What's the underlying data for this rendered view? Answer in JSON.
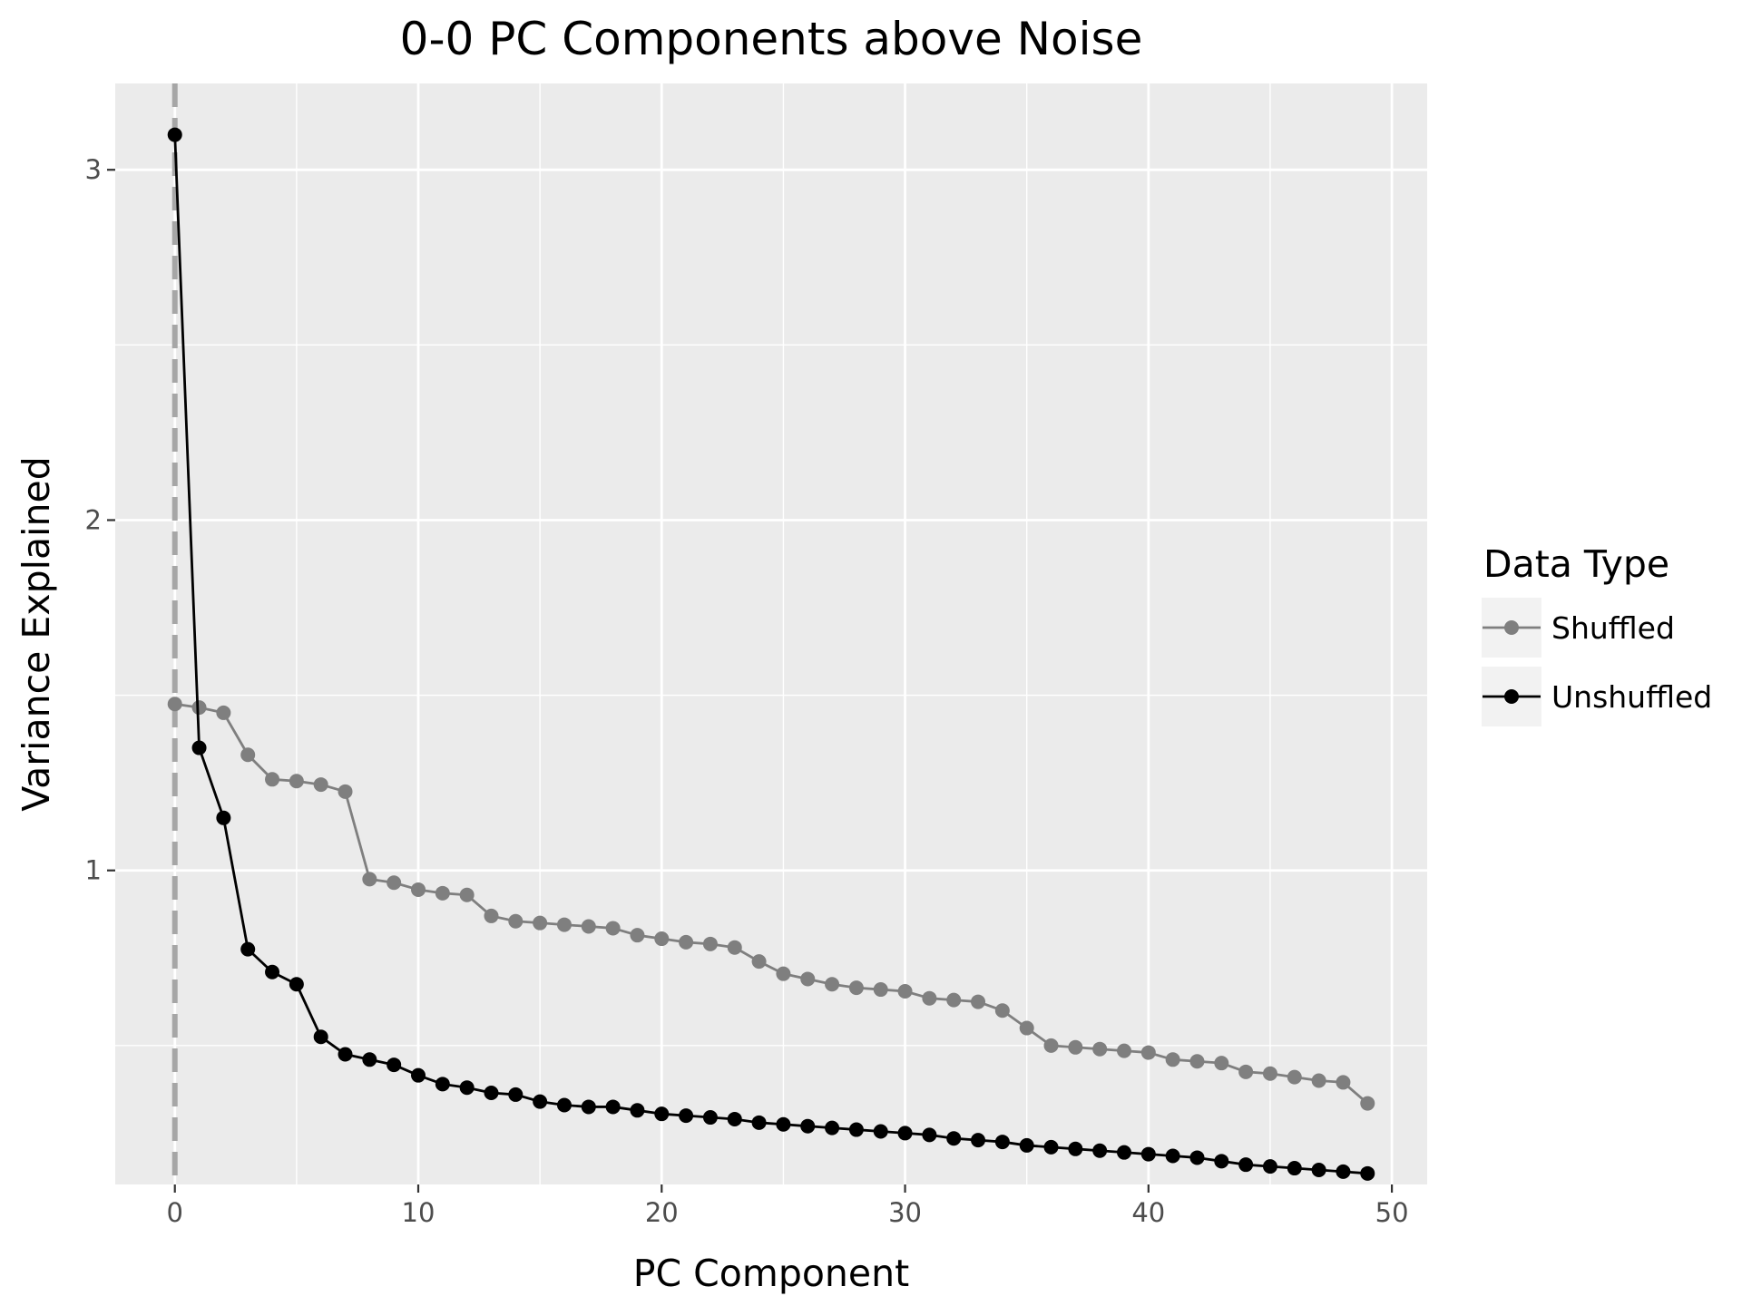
{
  "chart_data": {
    "type": "line",
    "title": "0-0 PC Components above Noise",
    "xlabel": "PC Component",
    "ylabel": "Variance Explained",
    "xlim": [
      -2.45,
      51.45
    ],
    "ylim": [
      0.1035,
      3.2465
    ],
    "x_ticks": [
      0,
      10,
      20,
      30,
      40,
      50
    ],
    "y_ticks": [
      1,
      2,
      3
    ],
    "grid": true,
    "reference_line": {
      "orientation": "vertical",
      "x": 0,
      "style": "dashed",
      "color": "#a6a6a6"
    },
    "legend": {
      "title": "Data Type",
      "position": "right"
    },
    "x": [
      0,
      1,
      2,
      3,
      4,
      5,
      6,
      7,
      8,
      9,
      10,
      11,
      12,
      13,
      14,
      15,
      16,
      17,
      18,
      19,
      20,
      21,
      22,
      23,
      24,
      25,
      26,
      27,
      28,
      29,
      30,
      31,
      32,
      33,
      34,
      35,
      36,
      37,
      38,
      39,
      40,
      41,
      42,
      43,
      44,
      45,
      46,
      47,
      48,
      49
    ],
    "series": [
      {
        "name": "Shuffled",
        "color": "#7f7f7f",
        "values": [
          1.475,
          1.465,
          1.45,
          1.33,
          1.26,
          1.255,
          1.245,
          1.225,
          0.975,
          0.965,
          0.945,
          0.935,
          0.93,
          0.87,
          0.855,
          0.85,
          0.845,
          0.84,
          0.835,
          0.815,
          0.805,
          0.795,
          0.79,
          0.78,
          0.74,
          0.705,
          0.69,
          0.675,
          0.665,
          0.66,
          0.655,
          0.635,
          0.63,
          0.625,
          0.6,
          0.55,
          0.5,
          0.495,
          0.49,
          0.485,
          0.48,
          0.46,
          0.455,
          0.45,
          0.425,
          0.42,
          0.41,
          0.4,
          0.395,
          0.335
        ]
      },
      {
        "name": "Unshuffled",
        "color": "#000000",
        "values": [
          3.1,
          1.35,
          1.15,
          0.775,
          0.71,
          0.675,
          0.525,
          0.475,
          0.46,
          0.445,
          0.415,
          0.39,
          0.38,
          0.365,
          0.36,
          0.34,
          0.33,
          0.325,
          0.325,
          0.315,
          0.305,
          0.3,
          0.295,
          0.29,
          0.28,
          0.275,
          0.27,
          0.265,
          0.26,
          0.255,
          0.25,
          0.245,
          0.235,
          0.23,
          0.225,
          0.215,
          0.21,
          0.205,
          0.2,
          0.195,
          0.19,
          0.185,
          0.18,
          0.17,
          0.16,
          0.155,
          0.15,
          0.145,
          0.14,
          0.135
        ]
      }
    ]
  }
}
